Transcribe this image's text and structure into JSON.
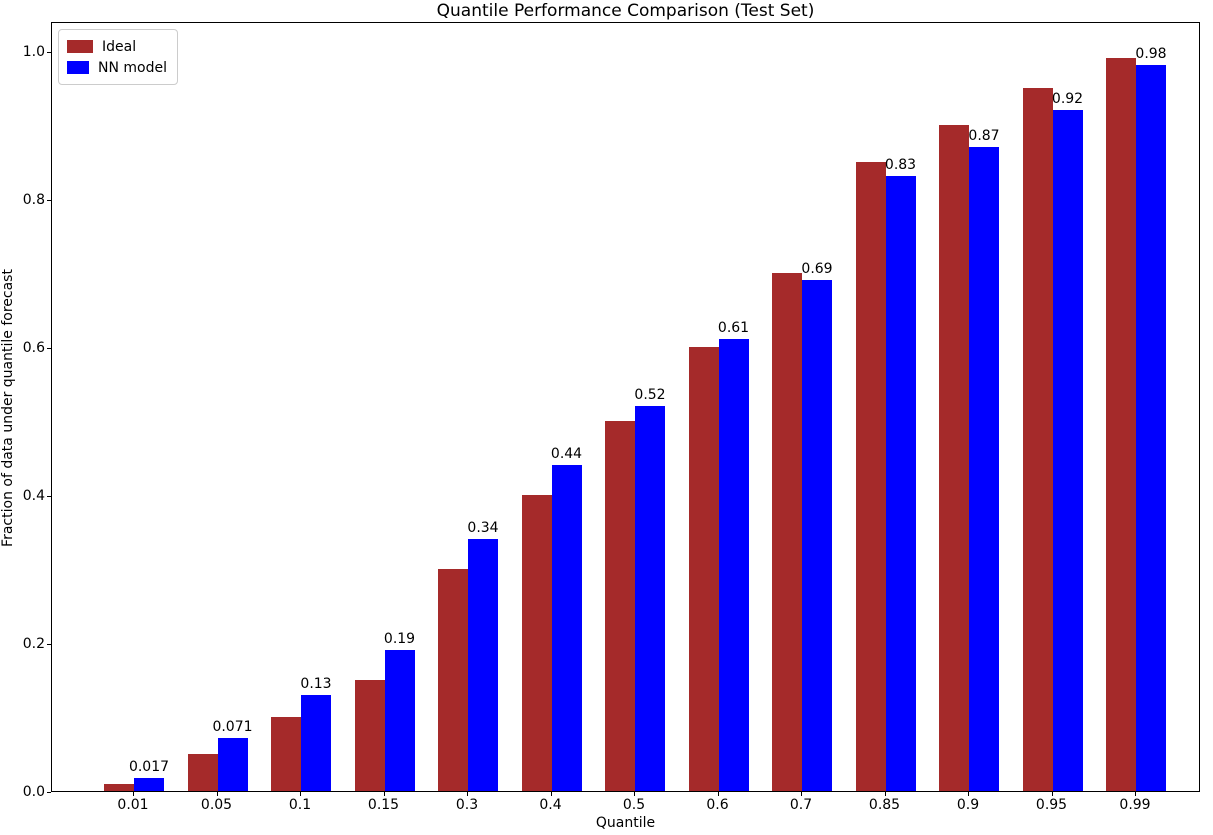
{
  "title": "Quantile Performance Comparison (Test Set)",
  "chart_data": {
    "type": "bar",
    "title": "Quantile Performance Comparison (Test Set)",
    "xlabel": "Quantile",
    "ylabel": "Fraction of data under quantile forecast",
    "categories": [
      "0.01",
      "0.05",
      "0.1",
      "0.15",
      "0.3",
      "0.4",
      "0.5",
      "0.6",
      "0.7",
      "0.85",
      "0.9",
      "0.95",
      "0.99"
    ],
    "series": [
      {
        "name": "Ideal",
        "color": "#A52A2A",
        "values": [
          0.01,
          0.05,
          0.1,
          0.15,
          0.3,
          0.4,
          0.5,
          0.6,
          0.7,
          0.85,
          0.9,
          0.95,
          0.99
        ]
      },
      {
        "name": "NN model",
        "color": "#0000FF",
        "values": [
          0.017,
          0.071,
          0.13,
          0.19,
          0.34,
          0.44,
          0.52,
          0.61,
          0.69,
          0.83,
          0.87,
          0.92,
          0.98
        ],
        "labels": [
          "0.017",
          "0.071",
          "0.13",
          "0.19",
          "0.34",
          "0.44",
          "0.52",
          "0.61",
          "0.69",
          "0.83",
          "0.87",
          "0.92",
          "0.98"
        ]
      }
    ],
    "ylim": [
      0,
      1.04
    ],
    "yticks": [
      "0.0",
      "0.2",
      "0.4",
      "0.6",
      "0.8",
      "1.0"
    ],
    "legend_position": "upper left",
    "grid": false,
    "value_labels_on": "NN model"
  }
}
